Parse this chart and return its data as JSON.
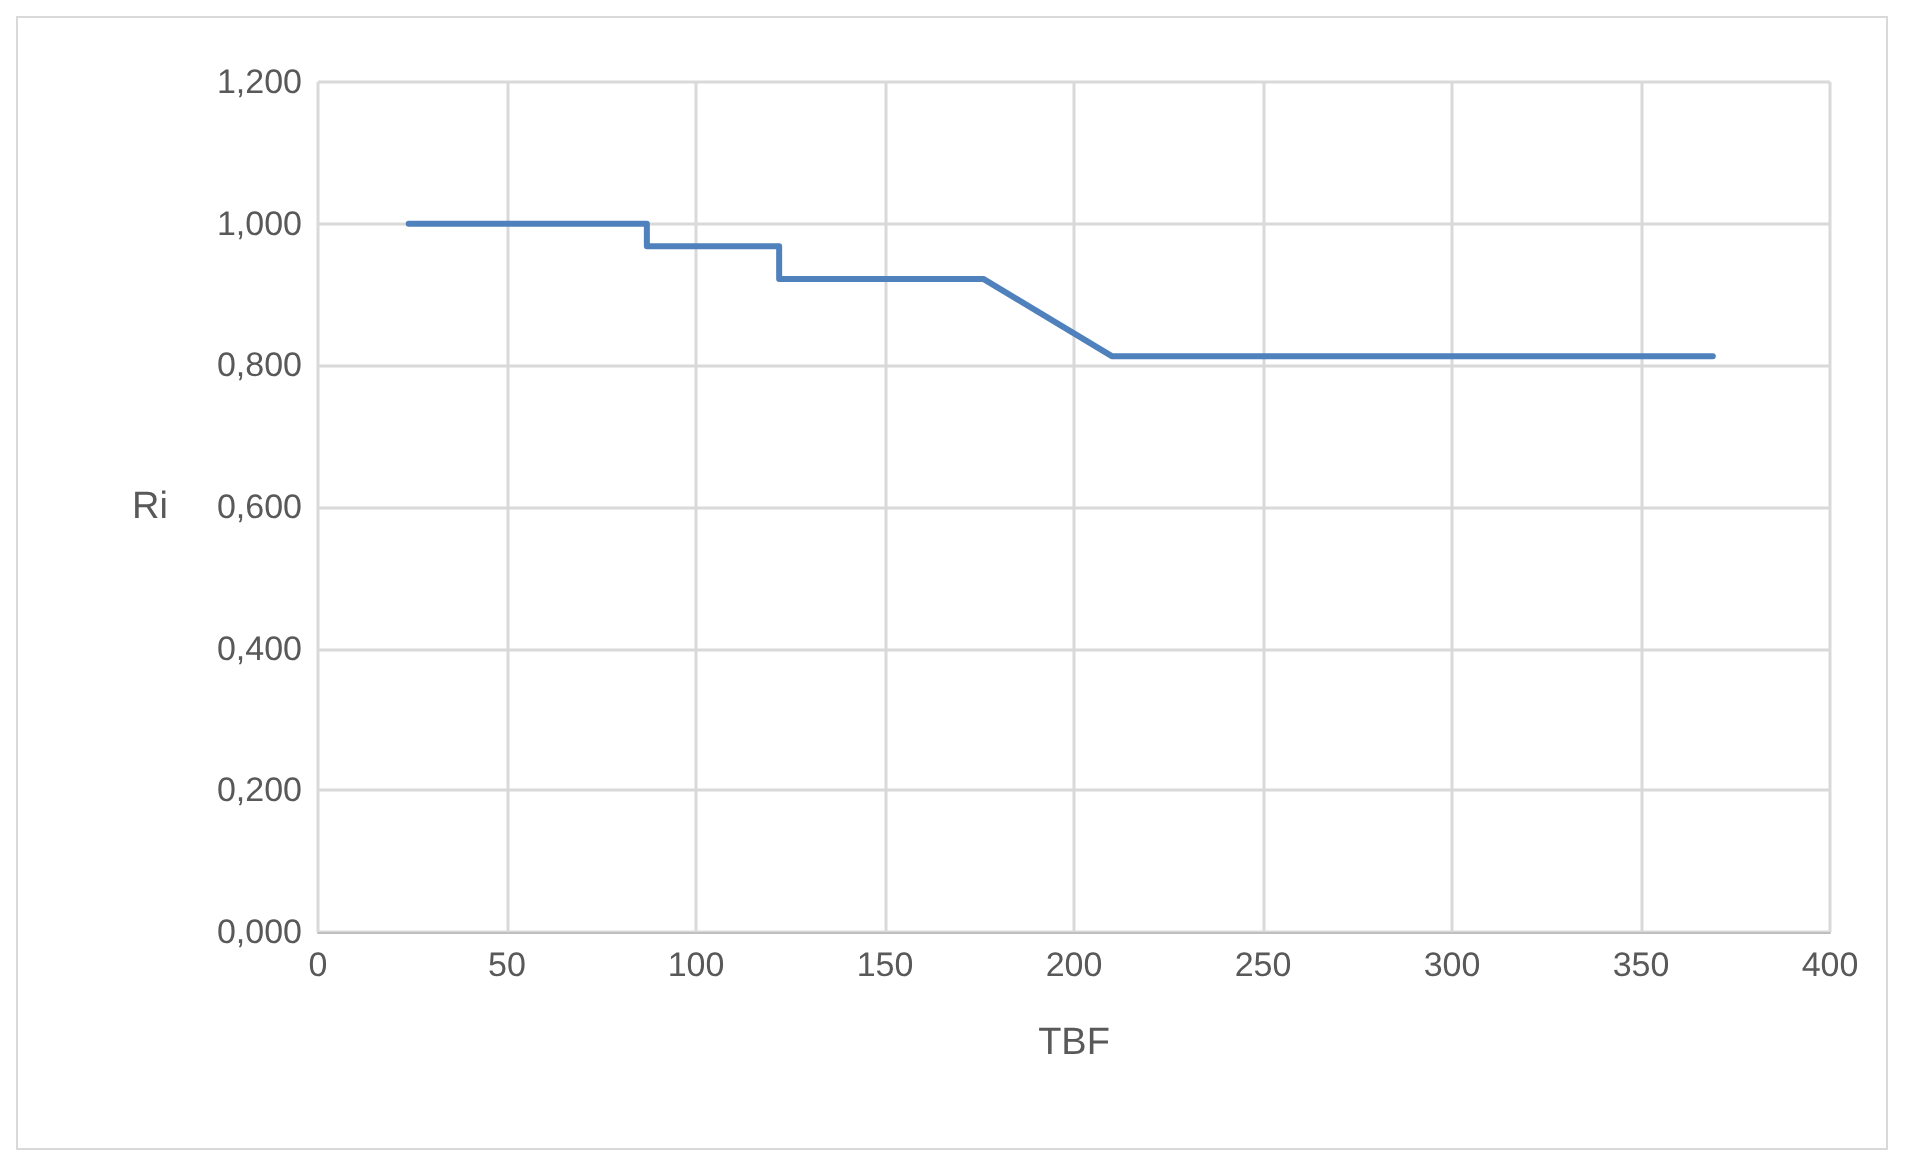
{
  "chart_data": {
    "type": "line",
    "xlabel": "TBF",
    "ylabel": "Ri",
    "series": [
      {
        "color": "#4f81bd",
        "x": [
          24,
          87,
          87,
          122,
          122,
          176,
          210,
          369
        ],
        "values": [
          1.0,
          1.0,
          0.968,
          0.968,
          0.922,
          0.922,
          0.813,
          0.813
        ]
      }
    ],
    "xlim": [
      0,
      400
    ],
    "xticks": [
      0,
      50,
      100,
      150,
      200,
      250,
      300,
      350,
      400
    ],
    "ylim": [
      0,
      1.2
    ],
    "yticks": [
      {
        "value": 0,
        "label": "0,000"
      },
      {
        "value": 0.2,
        "label": "0,200"
      },
      {
        "value": 0.4,
        "label": "0,400"
      },
      {
        "value": 0.6,
        "label": "0,600"
      },
      {
        "value": 0.8,
        "label": "0,800"
      },
      {
        "value": 1.0,
        "label": "1,000"
      },
      {
        "value": 1.2,
        "label": "1,200"
      }
    ],
    "grid": true,
    "marker": "none",
    "line_style": "solid"
  }
}
